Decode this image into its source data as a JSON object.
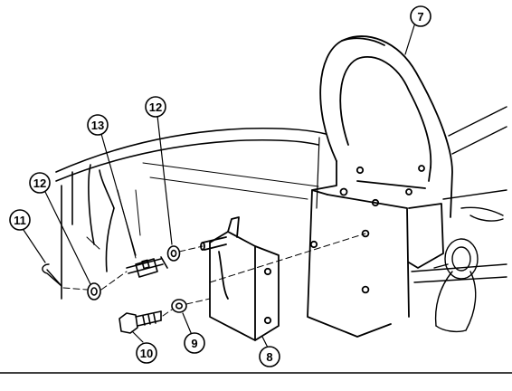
{
  "callouts": {
    "c7": "7",
    "c8": "8",
    "c9": "9",
    "c10": "10",
    "c11": "11",
    "c12a": "12",
    "c12b": "12",
    "c13": "13"
  }
}
